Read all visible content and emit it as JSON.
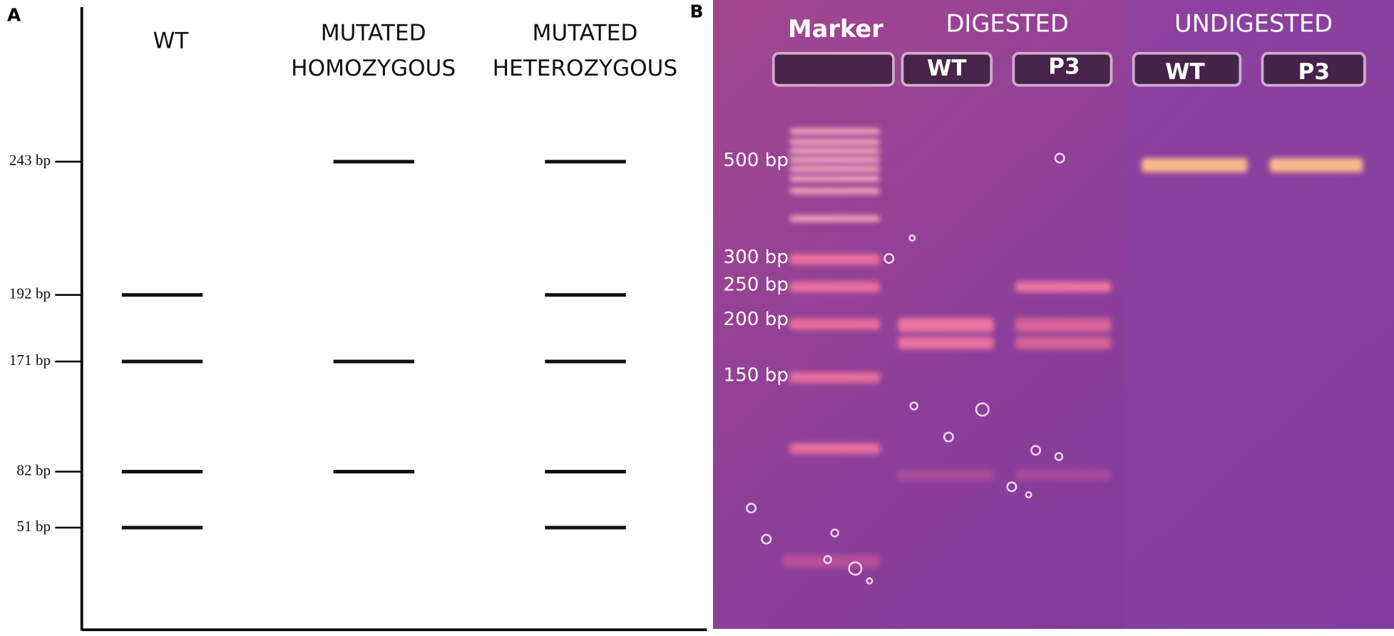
{
  "panel_a": {
    "label": "A",
    "lanes": [
      [
        "WT"
      ],
      [
        "MUTATED",
        "HOMOZYGOUS"
      ],
      [
        "MUTATED",
        "HETEROZYGOUS"
      ]
    ],
    "sizes": [
      {
        "label": "243 bp",
        "present": [
          false,
          true,
          true
        ]
      },
      {
        "label": "192 bp",
        "present": [
          true,
          false,
          true
        ]
      },
      {
        "label": "171 bp",
        "present": [
          true,
          true,
          true
        ]
      },
      {
        "label": "82 bp",
        "present": [
          true,
          true,
          true
        ]
      },
      {
        "label": "51 bp",
        "present": [
          true,
          false,
          true
        ]
      }
    ]
  },
  "panel_b": {
    "label": "B",
    "marker": "Marker",
    "digested": "DIGESTED",
    "undigested": "UNDIGESTED",
    "wells": [
      "WT",
      "P3",
      "WT",
      "P3"
    ],
    "ladder": [
      "500 bp",
      "300 bp",
      "250 bp",
      "200 bp",
      "150 bp"
    ]
  }
}
